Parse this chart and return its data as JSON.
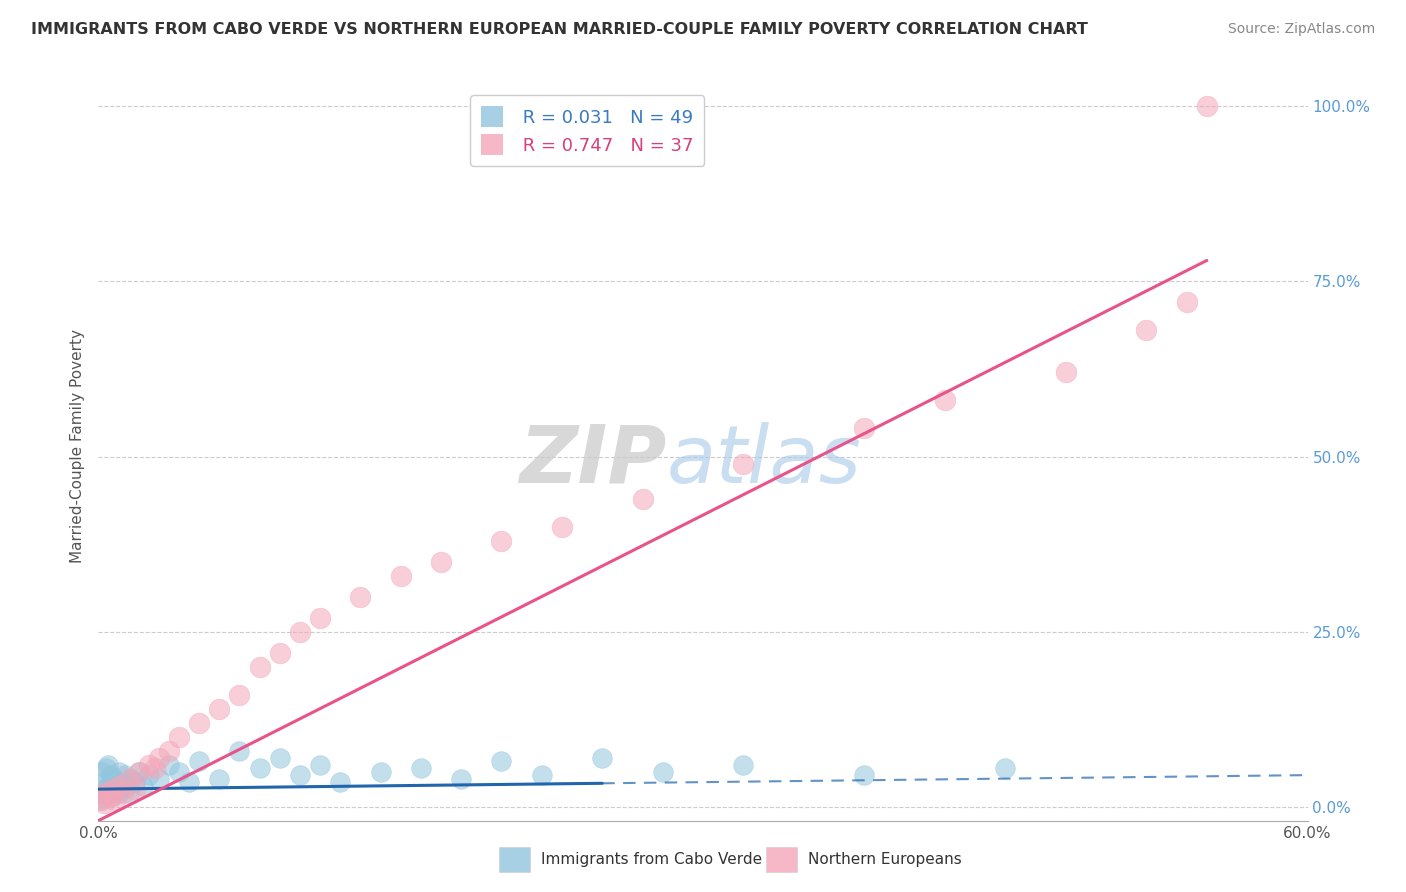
{
  "title": "IMMIGRANTS FROM CABO VERDE VS NORTHERN EUROPEAN MARRIED-COUPLE FAMILY POVERTY CORRELATION CHART",
  "source": "Source: ZipAtlas.com",
  "ylabel": "Married-Couple Family Poverty",
  "xlim": [
    0.0,
    0.6
  ],
  "ylim": [
    -0.02,
    1.05
  ],
  "xticks": [
    0.0,
    0.1,
    0.2,
    0.3,
    0.4,
    0.5,
    0.6
  ],
  "xticklabels": [
    "0.0%",
    "",
    "",
    "",
    "",
    "",
    "60.0%"
  ],
  "ytick_positions": [
    0.0,
    0.25,
    0.5,
    0.75,
    1.0
  ],
  "yticklabels": [
    "0.0%",
    "25.0%",
    "50.0%",
    "75.0%",
    "100.0%"
  ],
  "series1_label": "Immigrants from Cabo Verde",
  "series1_color": "#92c5de",
  "series1_line_color": "#2166ac",
  "series1_R": 0.031,
  "series1_N": 49,
  "series2_label": "Northern Europeans",
  "series2_color": "#f4a6b8",
  "series2_line_color": "#e8538a",
  "series2_R": 0.747,
  "series2_N": 37,
  "watermark_zip": "ZIP",
  "watermark_atlas": "atlas",
  "background_color": "#ffffff",
  "grid_color": "#cccccc",
  "cabo_verde_x": [
    0.001,
    0.002,
    0.002,
    0.003,
    0.003,
    0.004,
    0.004,
    0.005,
    0.005,
    0.006,
    0.006,
    0.007,
    0.007,
    0.008,
    0.009,
    0.01,
    0.01,
    0.011,
    0.012,
    0.013,
    0.014,
    0.015,
    0.016,
    0.018,
    0.02,
    0.022,
    0.025,
    0.03,
    0.035,
    0.04,
    0.045,
    0.05,
    0.06,
    0.07,
    0.08,
    0.09,
    0.1,
    0.11,
    0.12,
    0.14,
    0.16,
    0.18,
    0.2,
    0.22,
    0.25,
    0.28,
    0.32,
    0.38,
    0.45
  ],
  "cabo_verde_y": [
    0.02,
    0.01,
    0.05,
    0.015,
    0.035,
    0.025,
    0.055,
    0.03,
    0.06,
    0.02,
    0.045,
    0.015,
    0.04,
    0.025,
    0.03,
    0.02,
    0.05,
    0.035,
    0.025,
    0.045,
    0.03,
    0.02,
    0.04,
    0.035,
    0.05,
    0.03,
    0.045,
    0.04,
    0.06,
    0.05,
    0.035,
    0.065,
    0.04,
    0.08,
    0.055,
    0.07,
    0.045,
    0.06,
    0.035,
    0.05,
    0.055,
    0.04,
    0.065,
    0.045,
    0.07,
    0.05,
    0.06,
    0.045,
    0.055
  ],
  "northern_eu_x": [
    0.001,
    0.002,
    0.003,
    0.005,
    0.006,
    0.007,
    0.008,
    0.01,
    0.012,
    0.015,
    0.018,
    0.02,
    0.025,
    0.028,
    0.03,
    0.035,
    0.04,
    0.05,
    0.06,
    0.07,
    0.08,
    0.09,
    0.1,
    0.11,
    0.13,
    0.15,
    0.17,
    0.2,
    0.23,
    0.27,
    0.32,
    0.38,
    0.42,
    0.48,
    0.52,
    0.54,
    0.55
  ],
  "northern_eu_y": [
    0.01,
    0.02,
    0.005,
    0.02,
    0.015,
    0.025,
    0.01,
    0.03,
    0.02,
    0.04,
    0.025,
    0.05,
    0.06,
    0.055,
    0.07,
    0.08,
    0.1,
    0.12,
    0.14,
    0.16,
    0.2,
    0.22,
    0.25,
    0.27,
    0.3,
    0.33,
    0.35,
    0.38,
    0.4,
    0.44,
    0.49,
    0.54,
    0.58,
    0.62,
    0.68,
    0.72,
    1.0
  ],
  "cv_trend_x0": 0.0,
  "cv_trend_y0": 0.025,
  "cv_trend_x1": 0.6,
  "cv_trend_y1": 0.045,
  "ne_trend_x0": 0.0,
  "ne_trend_y0": -0.02,
  "ne_trend_x1": 0.55,
  "ne_trend_y1": 0.78
}
